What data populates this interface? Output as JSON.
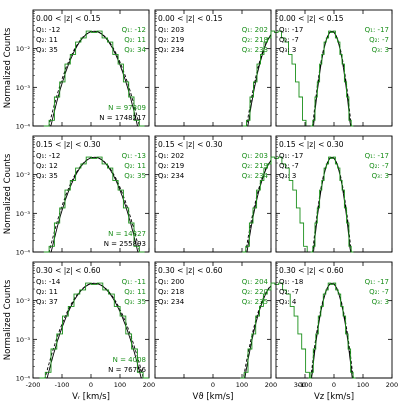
{
  "figure": {
    "ylabel": "Normalized Counts",
    "colors": {
      "model": "#000000",
      "data": "#1a8f1a",
      "axis": "#000000"
    }
  },
  "chart_data": {
    "type": "histogram-grid",
    "ylog": true,
    "ylim": [
      0.0001,
      0.1
    ],
    "yticks": [
      "10⁻²",
      "10⁻³",
      "10⁻⁴"
    ],
    "columns": [
      {
        "xlabel": "Vᵣ [km/s]",
        "xlim": [
          -200,
          200
        ],
        "xticks": [
          "-200",
          "-100",
          "0",
          "100",
          "200"
        ]
      },
      {
        "xlabel": "Vϑ [km/s]",
        "xlim": [
          0,
          400
        ],
        "xticks": [
          "0",
          "100",
          "200",
          "300"
        ]
      },
      {
        "xlabel": "Vᴢ [km/s]",
        "xlim": [
          -200,
          200
        ],
        "xticks": [
          "-100",
          "0",
          "100",
          "200"
        ]
      }
    ],
    "rows": [
      {
        "zbin": "0.00 < |z| < 0.15",
        "N_data": "N = 97309",
        "N_model": "N = 1748217",
        "panels": [
          {
            "model_q": [
              "Q₁: -12",
              "Q₂: 11",
              "Q₃: 35"
            ],
            "data_q": [
              "Q₁: -12",
              "Q₂: 11",
              "Q₃: 34"
            ]
          },
          {
            "model_q": [
              "Q₁: 203",
              "Q₂: 219",
              "Q₃: 234"
            ],
            "data_q": [
              "Q₁: 202",
              "Q₂: 218",
              "Q₃: 233"
            ]
          },
          {
            "model_q": [
              "Q₁: -17",
              "Q₂: -7",
              "Q₃: 3"
            ],
            "data_q": [
              "Q₁: -17",
              "Q₂: -7",
              "Q₃: 3"
            ]
          }
        ]
      },
      {
        "zbin": "0.15 < |z| < 0.30",
        "N_data": "N = 14327",
        "N_model": "N = 255893",
        "panels": [
          {
            "model_q": [
              "Q₁: -12",
              "Q₂: 12",
              "Q₃: 35"
            ],
            "data_q": [
              "Q₁: -13",
              "Q₂: 11",
              "Q₃: 35"
            ]
          },
          {
            "model_q": [
              "Q₁: 202",
              "Q₂: 219",
              "Q₃: 234"
            ],
            "data_q": [
              "Q₁: 203",
              "Q₂: 219",
              "Q₃: 234"
            ]
          },
          {
            "model_q": [
              "Q₁: -17",
              "Q₂: -7",
              "Q₃: 3"
            ],
            "data_q": [
              "Q₁: -17",
              "Q₂: -7",
              "Q₃: 3"
            ]
          }
        ]
      },
      {
        "zbin": "0.30 < |z| < 0.60",
        "N_data": "N = 4008",
        "N_model": "N = 76756",
        "panels": [
          {
            "model_q": [
              "Q₁: -14",
              "Q₂: 11",
              "Q₃: 37"
            ],
            "data_q": [
              "Q₁: -11",
              "Q₂: 11",
              "Q₃: 35"
            ]
          },
          {
            "model_q": [
              "Q₁: 200",
              "Q₂: 218",
              "Q₃: 234"
            ],
            "data_q": [
              "Q₁: 204",
              "Q₂: 220",
              "Q₃: 235"
            ]
          },
          {
            "model_q": [
              "Q₁: -18",
              "Q₂: -7",
              "Q₃: 4"
            ],
            "data_q": [
              "Q₁: -17",
              "Q₂: -7",
              "Q₃: 3"
            ]
          }
        ]
      }
    ]
  }
}
